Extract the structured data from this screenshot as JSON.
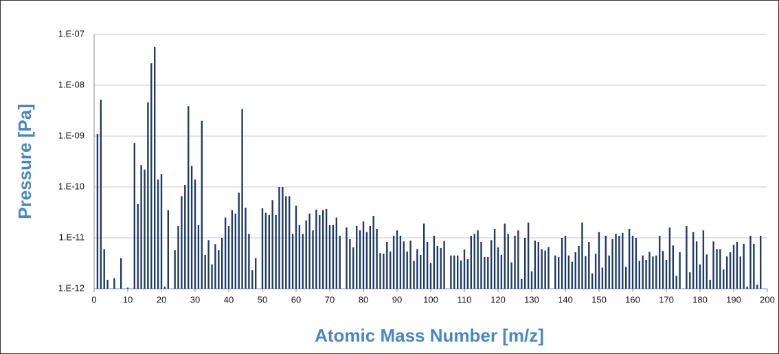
{
  "chart_data": {
    "type": "bar",
    "y_label": "Pressure [Pa]",
    "x_label": "Atomic Mass Number [m/z]",
    "color": "#1f3a68",
    "log_y": true,
    "grid": true,
    "x": [
      1,
      2,
      3,
      4,
      6,
      8,
      10,
      12,
      13,
      14,
      15,
      16,
      17,
      18,
      19,
      20,
      21,
      22,
      24,
      25,
      26,
      27,
      28,
      29,
      30,
      31,
      32,
      33,
      34,
      35,
      36,
      37,
      38,
      39,
      40,
      41,
      42,
      43,
      44,
      45,
      46,
      47,
      48,
      50,
      51,
      52,
      53,
      54,
      55,
      56,
      57,
      58,
      59,
      60,
      61,
      62,
      63,
      64,
      65,
      66,
      67,
      68,
      69,
      70,
      71,
      72,
      73,
      75,
      76,
      77,
      78,
      79,
      80,
      81,
      82,
      83,
      84,
      85,
      86,
      87,
      88,
      89,
      90,
      91,
      92,
      93,
      94,
      95,
      96,
      97,
      98,
      99,
      100,
      101,
      102,
      103,
      104,
      106,
      107,
      108,
      109,
      110,
      111,
      112,
      113,
      114,
      115,
      116,
      117,
      118,
      119,
      120,
      121,
      122,
      123,
      124,
      125,
      126,
      127,
      128,
      129,
      130,
      131,
      132,
      133,
      134,
      135,
      137,
      138,
      139,
      140,
      141,
      142,
      143,
      144,
      145,
      146,
      147,
      148,
      149,
      150,
      151,
      152,
      153,
      154,
      155,
      156,
      157,
      158,
      159,
      160,
      161,
      162,
      163,
      164,
      165,
      166,
      167,
      168,
      169,
      170,
      171,
      172,
      173,
      174,
      176,
      177,
      178,
      179,
      180,
      181,
      182,
      183,
      184,
      185,
      186,
      187,
      188,
      189,
      190,
      191,
      192,
      193,
      194,
      195,
      196,
      197,
      198
    ],
    "values": [
      1.1e-09,
      5.2e-09,
      6e-12,
      1.5e-12,
      1.6e-12,
      4e-12,
      1.05e-12,
      7.3e-10,
      4.6e-11,
      2.7e-10,
      2.2e-10,
      4.6e-09,
      2.7e-08,
      5.7e-08,
      1.4e-10,
      1.8e-10,
      1.1e-12,
      3.5e-11,
      5.7e-12,
      1.7e-11,
      6.6e-11,
      1.1e-10,
      3.9e-09,
      2.6e-10,
      1.4e-10,
      1.8e-11,
      2e-09,
      4.6e-12,
      9e-12,
      3e-12,
      7.5e-12,
      5.7e-12,
      1e-11,
      2.5e-11,
      1.7e-11,
      3.5e-11,
      3e-11,
      7.7e-11,
      3.4e-09,
      3.9e-11,
      1.2e-11,
      2.3e-12,
      4e-12,
      3.8e-11,
      3.1e-11,
      2.8e-11,
      5.5e-11,
      2.8e-11,
      1e-10,
      1e-10,
      6.6e-11,
      6.6e-11,
      1.2e-11,
      4.3e-11,
      1.8e-11,
      1.2e-11,
      2.2e-11,
      3e-11,
      1.4e-11,
      3.6e-11,
      2.8e-11,
      3.5e-11,
      3.7e-11,
      1.8e-11,
      1.8e-11,
      2.5e-11,
      1.1e-11,
      1.6e-11,
      9.4e-12,
      6.5e-12,
      1.7e-11,
      1.4e-11,
      2.1e-11,
      1.3e-11,
      1.7e-11,
      2.7e-11,
      1.5e-11,
      5e-12,
      4.9e-12,
      8.3e-12,
      5.4e-12,
      1.1e-11,
      1.4e-11,
      1.1e-11,
      8.5e-12,
      5.4e-12,
      8.8e-12,
      3.5e-12,
      6e-12,
      4.6e-12,
      1.9e-11,
      8.3e-12,
      3.2e-12,
      1.1e-11,
      6.9e-12,
      6.3e-12,
      8.6e-12,
      4.5e-12,
      4.5e-12,
      4.5e-12,
      3.6e-12,
      5.9e-12,
      3.8e-12,
      1.1e-11,
      1.2e-11,
      1.4e-11,
      8.3e-12,
      4.2e-12,
      4.2e-12,
      9e-12,
      1.5e-11,
      6.5e-12,
      4.6e-12,
      1.9e-11,
      1.2e-11,
      3.3e-12,
      1.1e-11,
      1.4e-11,
      1.55e-12,
      1e-11,
      2e-11,
      2.2e-12,
      8.8e-12,
      8.3e-12,
      6e-12,
      5.6e-12,
      6.6e-12,
      4.5e-12,
      4.2e-12,
      1e-11,
      1.1e-11,
      4.5e-12,
      3.4e-12,
      5.2e-12,
      6.9e-12,
      2e-11,
      4.4e-12,
      8.3e-12,
      2e-12,
      4.9e-12,
      1.3e-11,
      2.6e-12,
      1.1e-11,
      4.5e-12,
      9.4e-12,
      1.2e-11,
      1.1e-11,
      1.25e-11,
      2.7e-12,
      1.5e-11,
      1.1e-11,
      1e-11,
      3.5e-12,
      4.5e-12,
      3.7e-12,
      5.3e-12,
      4.3e-12,
      4.5e-12,
      1.1e-11,
      5.5e-12,
      3.7e-12,
      1.6e-11,
      7.1e-12,
      1.8e-12,
      5.2e-12,
      1.7e-11,
      2.1e-12,
      1.3e-11,
      8.5e-12,
      3e-12,
      1.4e-11,
      4.7e-12,
      1.5e-12,
      8.5e-12,
      6e-12,
      6e-12,
      2.4e-12,
      4.3e-12,
      5.2e-12,
      7.3e-12,
      8.3e-12,
      4.3e-12,
      7.6e-12,
      1.1e-12,
      1.1e-11,
      7.6e-12,
      1.2e-12,
      1.1e-11
    ],
    "xlim": [
      0,
      200
    ],
    "xticks": [
      0,
      10,
      20,
      30,
      40,
      50,
      60,
      70,
      80,
      90,
      100,
      110,
      120,
      130,
      140,
      150,
      160,
      170,
      180,
      190,
      200
    ],
    "ylim": [
      1e-12,
      1e-07
    ],
    "yticks": [
      {
        "value": 1e-12,
        "label": "1.E-12"
      },
      {
        "value": 1e-11,
        "label": "1.E-11"
      },
      {
        "value": 1e-10,
        "label": "1.E-10"
      },
      {
        "value": 1e-09,
        "label": "1.E-09"
      },
      {
        "value": 1e-08,
        "label": "1.E-08"
      },
      {
        "value": 1e-07,
        "label": "1.E-07"
      }
    ]
  }
}
